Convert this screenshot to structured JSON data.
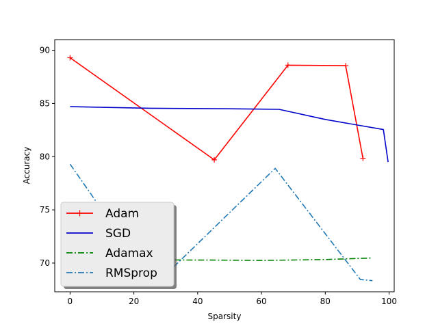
{
  "chart_data": {
    "type": "line",
    "title": "",
    "xlabel": "Sparsity",
    "ylabel": "Accuracy",
    "xlim": [
      -4.8,
      101.6
    ],
    "ylim": [
      67.3,
      91.0
    ],
    "xticks": [
      0,
      20,
      40,
      60,
      80,
      100
    ],
    "yticks": [
      70,
      75,
      80,
      85,
      90
    ],
    "grid": false,
    "legend_position": "lower-left",
    "series": [
      {
        "name": "Adam",
        "color": "#ff0000",
        "linestyle": "solid",
        "marker": "plus",
        "x": [
          0,
          45.2,
          68.3,
          86.4,
          91.8
        ],
        "y": [
          89.3,
          79.7,
          88.6,
          88.55,
          79.85
        ]
      },
      {
        "name": "SGD",
        "color": "#0000cc",
        "linestyle": "solid",
        "marker": "none",
        "x": [
          0,
          25,
          50,
          65.5,
          80,
          98.2,
          99.7
        ],
        "y": [
          84.7,
          84.55,
          84.5,
          84.45,
          83.5,
          82.55,
          79.5
        ]
      },
      {
        "name": "Adamax",
        "color": "#008000",
        "linestyle": "dashdot",
        "marker": "none",
        "x": [
          0,
          20,
          45,
          60,
          65,
          80,
          94.8
        ],
        "y": [
          70.3,
          70.3,
          70.28,
          70.25,
          70.27,
          70.33,
          70.48
        ]
      },
      {
        "name": "RMSprop",
        "color": "#1f77b4",
        "linestyle": "dashdot",
        "marker": "none",
        "x": [
          0,
          26.5,
          64.3,
          91.0,
          94.8
        ],
        "y": [
          79.3,
          67.9,
          78.9,
          68.45,
          68.35
        ]
      }
    ]
  }
}
